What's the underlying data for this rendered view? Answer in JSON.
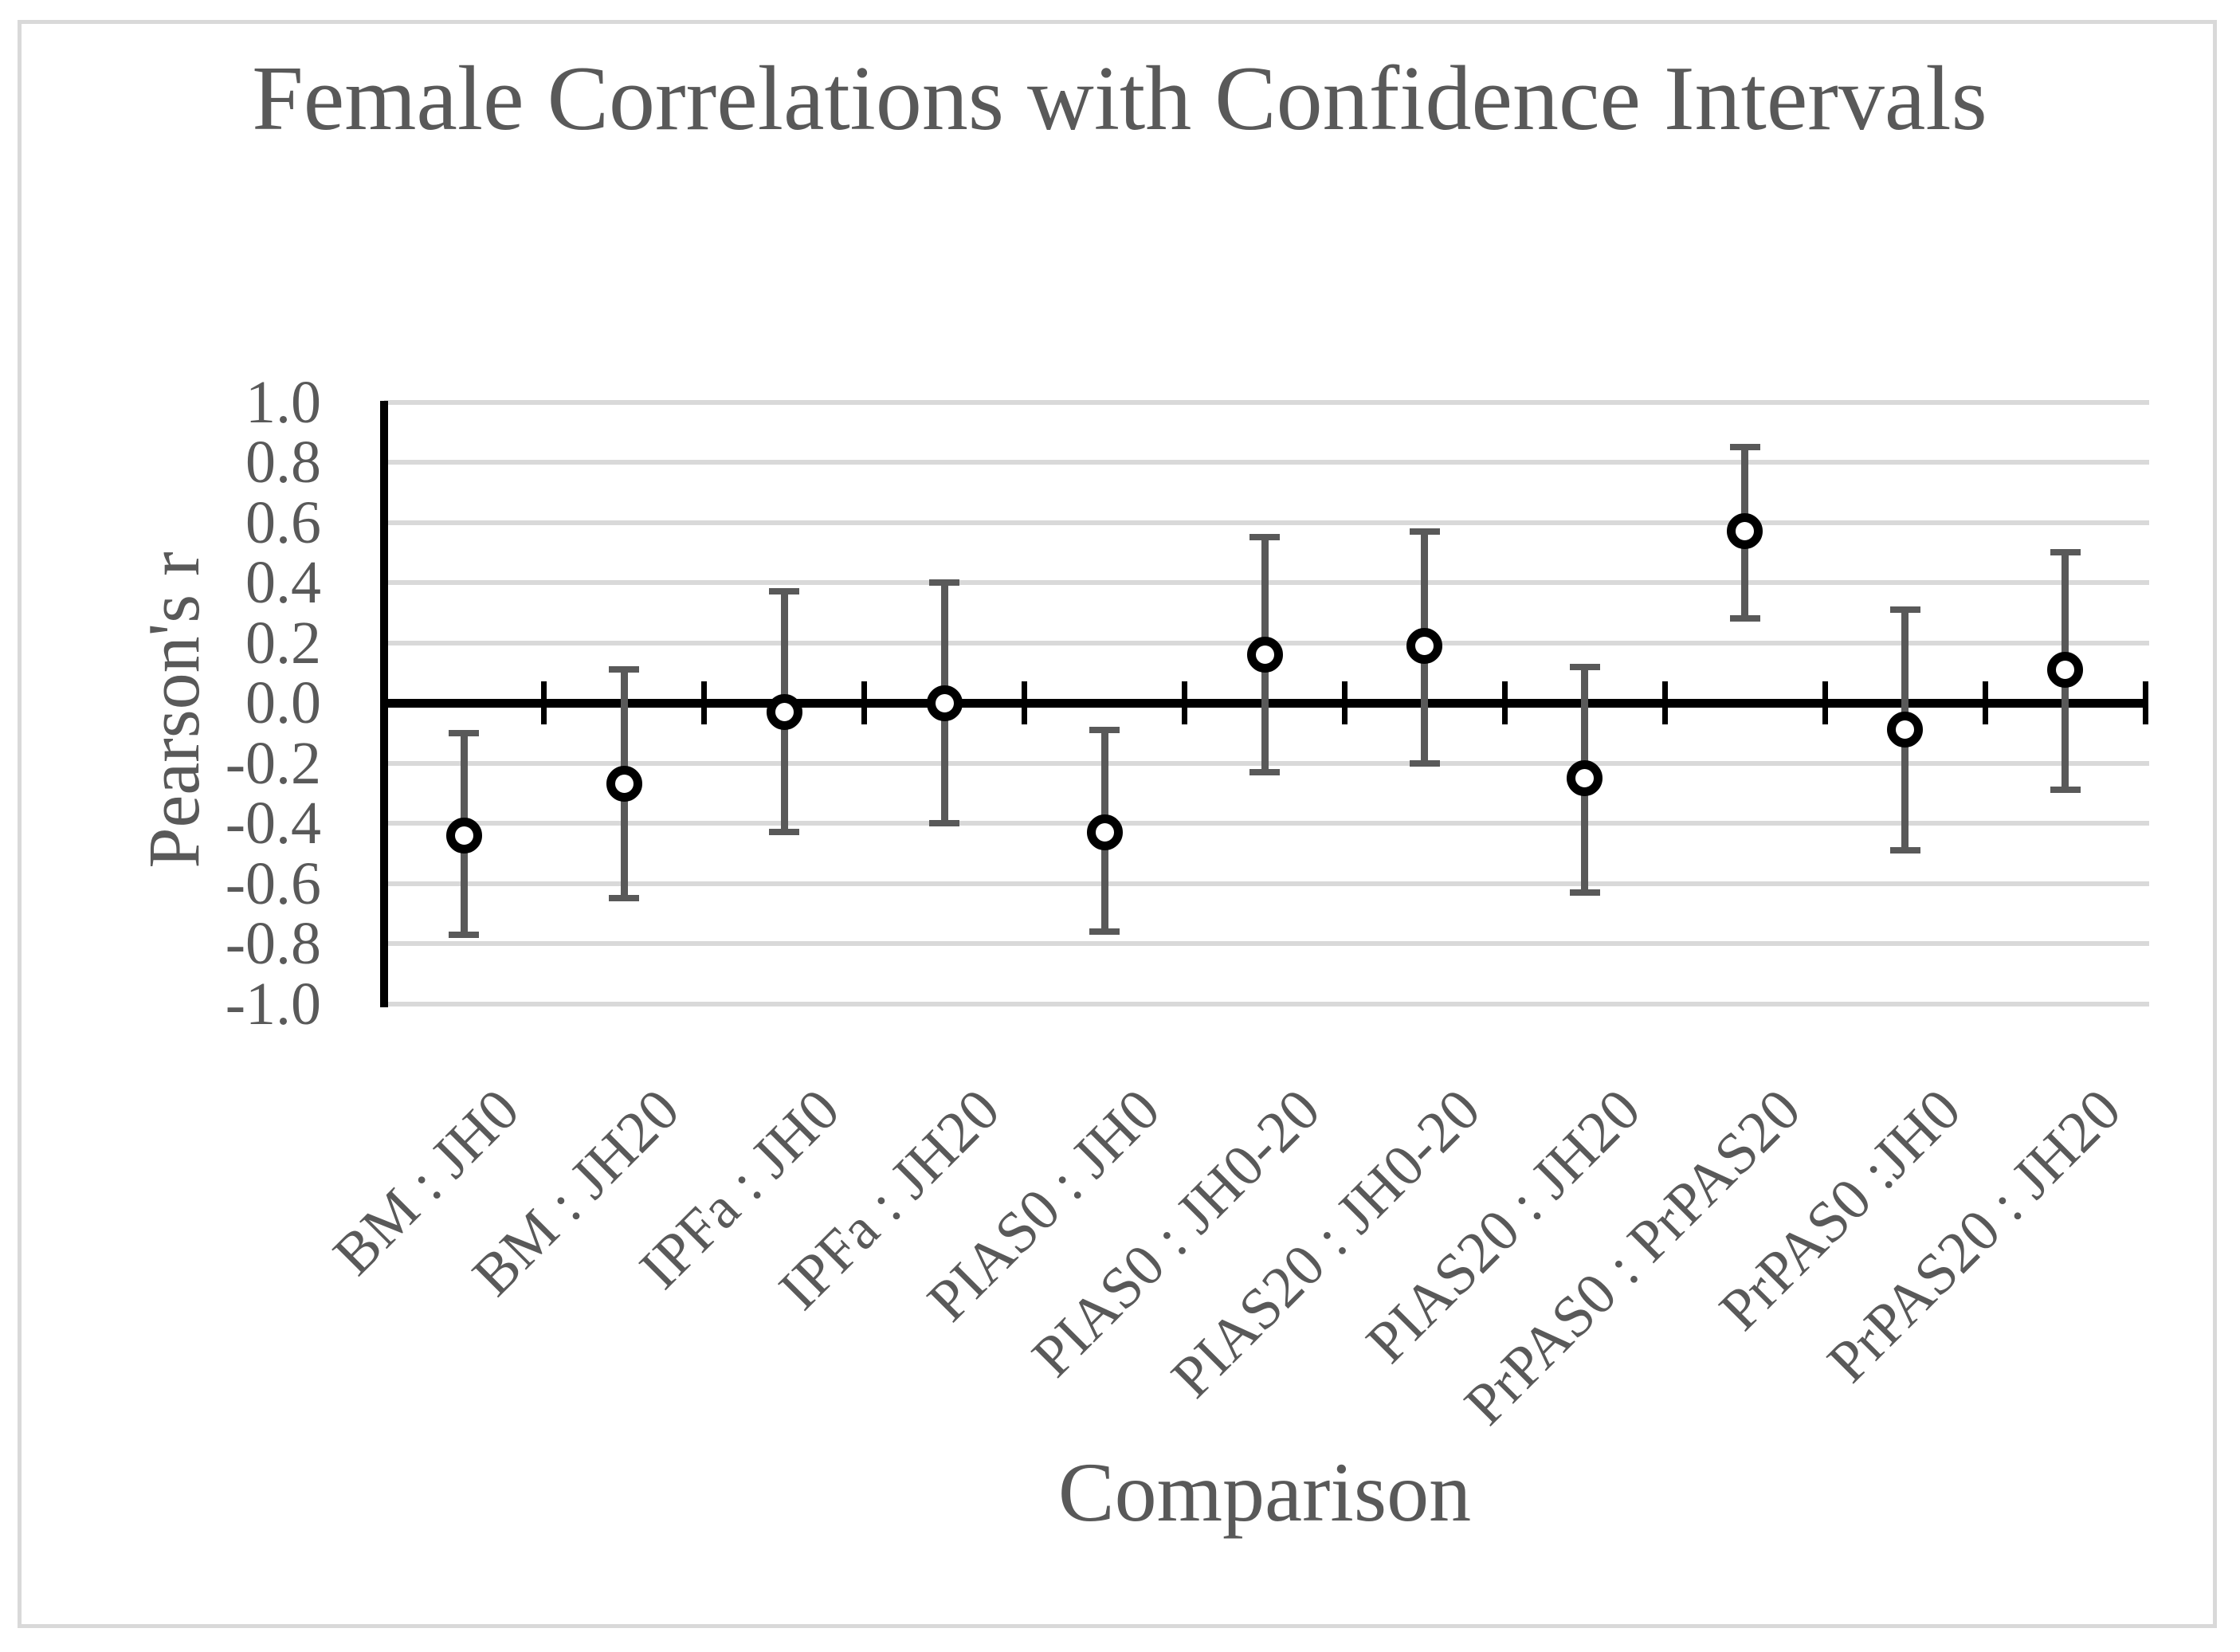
{
  "title": "Female Correlations with Confidence Intervals",
  "colors": {
    "text": "#595959",
    "gridline": "#d9d9d9",
    "axis_line": "#000000",
    "error_bar": "#595959",
    "marker_fill": "#ffffff",
    "marker_stroke": "#000000",
    "frame_border": "#d9d9d9"
  },
  "chart_data": {
    "type": "scatter",
    "title": "Female Correlations with Confidence Intervals",
    "xlabel": "Comparison",
    "ylabel": "Pearson's r",
    "ylim": [
      -1.0,
      1.0
    ],
    "y_tick_step": 0.2,
    "grid": true,
    "legend": false,
    "marker_style": "open-circle-with-error-bars",
    "categories": [
      "BM : JH0",
      "BM : JH20",
      "IPFa : JH0",
      "IPFa : JH20",
      "PIAS0 : JH0",
      "PIAS0 : JH0-20",
      "PIAS20 : JH0-20",
      "PIAS20 : JH20",
      "PrPAS0 : PrPAS20",
      "PrPAS0 :JH0",
      "PrPAS20 : JH20"
    ],
    "series": [
      {
        "name": "Pearson's r",
        "values": [
          -0.44,
          -0.27,
          -0.03,
          0.0,
          -0.43,
          0.16,
          0.19,
          -0.25,
          0.57,
          -0.09,
          0.11
        ],
        "ci_low": [
          -0.77,
          -0.65,
          -0.43,
          -0.4,
          -0.76,
          -0.23,
          -0.2,
          -0.63,
          0.28,
          -0.49,
          -0.29
        ],
        "ci_high": [
          -0.1,
          0.11,
          0.37,
          0.4,
          -0.09,
          0.55,
          0.57,
          0.12,
          0.85,
          0.31,
          0.5
        ]
      }
    ]
  }
}
